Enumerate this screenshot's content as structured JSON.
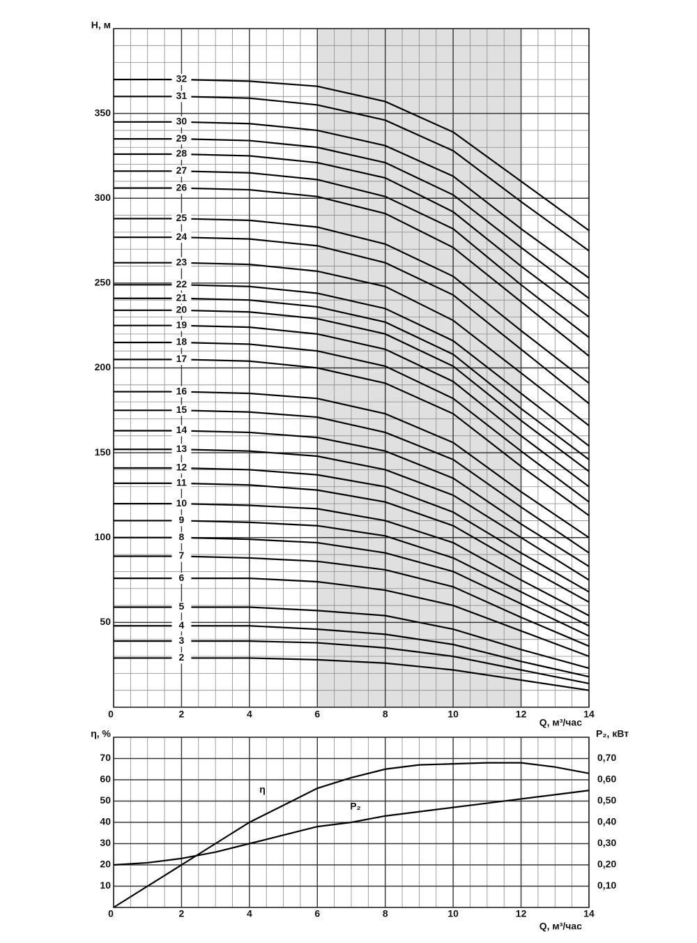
{
  "chart_data": [
    {
      "type": "line",
      "y_label": "H, м",
      "x_label": "Q, м³/час",
      "x": [
        0,
        2,
        4,
        6,
        8,
        10,
        12,
        14
      ],
      "xlim": [
        0,
        14
      ],
      "xticks": [
        0,
        2,
        4,
        6,
        8,
        10,
        12,
        14
      ],
      "ylim": [
        0,
        400
      ],
      "yticks": [
        50,
        100,
        150,
        200,
        250,
        300,
        350
      ],
      "grid": true,
      "highlight_xrange": [
        6,
        12
      ],
      "highlight_color": "#e0e0e0",
      "series": [
        {
          "name": "32",
          "color": "#000000",
          "values": [
            370,
            370,
            369,
            366,
            357,
            339,
            310,
            281
          ]
        },
        {
          "name": "31",
          "color": "#000000",
          "values": [
            360,
            360,
            359,
            355,
            346,
            328,
            298,
            269
          ]
        },
        {
          "name": "30",
          "color": "#000000",
          "values": [
            345,
            345,
            344,
            340,
            331,
            313,
            282,
            253
          ]
        },
        {
          "name": "29",
          "color": "#000000",
          "values": [
            335,
            335,
            334,
            330,
            321,
            302,
            271,
            241
          ]
        },
        {
          "name": "28",
          "color": "#000000",
          "values": [
            326,
            326,
            325,
            321,
            312,
            292,
            260,
            230
          ]
        },
        {
          "name": "27",
          "color": "#000000",
          "values": [
            316,
            316,
            315,
            311,
            301,
            282,
            249,
            218
          ]
        },
        {
          "name": "26",
          "color": "#000000",
          "values": [
            306,
            306,
            305,
            301,
            291,
            271,
            239,
            207
          ]
        },
        {
          "name": "25",
          "color": "#000000",
          "values": [
            288,
            288,
            287,
            283,
            273,
            254,
            222,
            191
          ]
        },
        {
          "name": "24",
          "color": "#000000",
          "values": [
            277,
            277,
            276,
            272,
            262,
            243,
            211,
            179
          ]
        },
        {
          "name": "23",
          "color": "#000000",
          "values": [
            262,
            262,
            261,
            257,
            248,
            228,
            197,
            166
          ]
        },
        {
          "name": "22",
          "color": "#000000",
          "values": [
            249,
            249,
            248,
            244,
            235,
            216,
            185,
            154
          ]
        },
        {
          "name": "21",
          "color": "#000000",
          "values": [
            241,
            241,
            240,
            236,
            227,
            208,
            176,
            146
          ]
        },
        {
          "name": "20",
          "color": "#000000",
          "values": [
            234,
            234,
            233,
            229,
            220,
            201,
            169,
            139
          ]
        },
        {
          "name": "19",
          "color": "#000000",
          "values": [
            225,
            225,
            224,
            220,
            211,
            192,
            160,
            130
          ]
        },
        {
          "name": "18",
          "color": "#000000",
          "values": [
            215,
            215,
            214,
            210,
            201,
            182,
            151,
            121
          ]
        },
        {
          "name": "17",
          "color": "#000000",
          "values": [
            205,
            205,
            204,
            200,
            191,
            173,
            142,
            113
          ]
        },
        {
          "name": "16",
          "color": "#000000",
          "values": [
            186,
            186,
            185,
            182,
            173,
            156,
            127,
            100
          ]
        },
        {
          "name": "15",
          "color": "#000000",
          "values": [
            175,
            175,
            174,
            171,
            162,
            146,
            118,
            91
          ]
        },
        {
          "name": "14",
          "color": "#000000",
          "values": [
            163,
            163,
            162,
            159,
            151,
            135,
            108,
            83
          ]
        },
        {
          "name": "13",
          "color": "#000000",
          "values": [
            152,
            152,
            151,
            148,
            140,
            125,
            100,
            75
          ]
        },
        {
          "name": "12",
          "color": "#000000",
          "values": [
            141,
            141,
            140,
            137,
            130,
            115,
            91,
            68
          ]
        },
        {
          "name": "11",
          "color": "#000000",
          "values": [
            132,
            132,
            131,
            128,
            121,
            107,
            84,
            62
          ]
        },
        {
          "name": "10",
          "color": "#000000",
          "values": [
            120,
            120,
            119,
            117,
            110,
            97,
            75,
            54
          ]
        },
        {
          "name": "9",
          "color": "#000000",
          "values": [
            110,
            110,
            109,
            107,
            101,
            88,
            68,
            48
          ]
        },
        {
          "name": "8",
          "color": "#000000",
          "values": [
            100,
            100,
            99,
            97,
            91,
            80,
            61,
            42
          ]
        },
        {
          "name": "7",
          "color": "#000000",
          "values": [
            89,
            89,
            88,
            86,
            81,
            71,
            53,
            36
          ]
        },
        {
          "name": "6",
          "color": "#000000",
          "values": [
            76,
            76,
            76,
            74,
            69,
            60,
            45,
            30
          ]
        },
        {
          "name": "5",
          "color": "#000000",
          "values": [
            59,
            59,
            59,
            57,
            54,
            46,
            34,
            23
          ]
        },
        {
          "name": "4",
          "color": "#000000",
          "values": [
            48,
            48,
            48,
            46,
            43,
            37,
            27,
            18
          ]
        },
        {
          "name": "3",
          "color": "#000000",
          "values": [
            39,
            39,
            39,
            38,
            35,
            30,
            22,
            14
          ]
        },
        {
          "name": "2",
          "color": "#000000",
          "values": [
            29,
            29,
            29,
            28,
            26,
            22,
            16,
            10
          ]
        }
      ]
    },
    {
      "type": "line",
      "y_label": "η, %",
      "y2_label": "P₂, кВт",
      "x_label": "Q, м³/час",
      "x": [
        0,
        1,
        2,
        3,
        4,
        5,
        6,
        7,
        8,
        9,
        10,
        11,
        12,
        13,
        14
      ],
      "xlim": [
        0,
        14
      ],
      "xticks": [
        0,
        2,
        4,
        6,
        8,
        10,
        12,
        14
      ],
      "ylim": [
        0,
        80
      ],
      "yticks": [
        10,
        20,
        30,
        40,
        50,
        60,
        70
      ],
      "y2lim": [
        0,
        0.8
      ],
      "y2ticks": [
        {
          "value": 0.1,
          "label": "0,10"
        },
        {
          "value": 0.2,
          "label": "0,20"
        },
        {
          "value": 0.3,
          "label": "0,30"
        },
        {
          "value": 0.4,
          "label": "0,40"
        },
        {
          "value": 0.5,
          "label": "0,50"
        },
        {
          "value": 0.6,
          "label": "0,60"
        },
        {
          "value": 0.7,
          "label": "0,70"
        }
      ],
      "grid": true,
      "series": [
        {
          "name": "η",
          "color": "#000000",
          "values": [
            0,
            10,
            20,
            30,
            40,
            48,
            56,
            61,
            65,
            67,
            67.5,
            68,
            68,
            66,
            63
          ]
        },
        {
          "name": "P₂",
          "color": "#000000",
          "axis": "y2",
          "values": [
            0.2,
            0.21,
            0.23,
            0.26,
            0.3,
            0.34,
            0.38,
            0.4,
            0.43,
            0.45,
            0.47,
            0.49,
            0.51,
            0.53,
            0.55
          ]
        }
      ]
    }
  ]
}
